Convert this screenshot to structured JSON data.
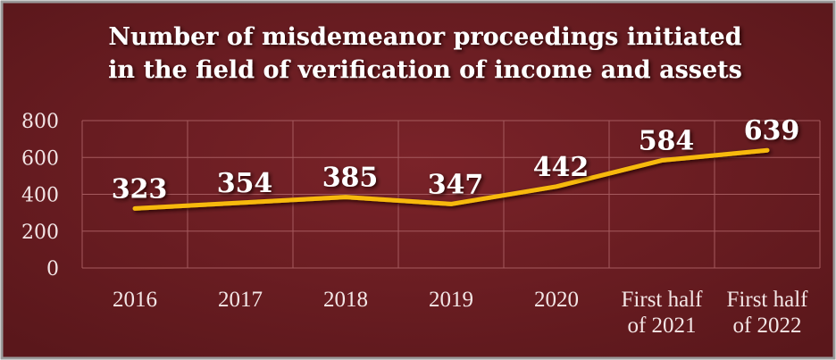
{
  "chart_data": {
    "type": "line",
    "title": [
      "Number of misdemeanor proceedings initiated",
      "in the field of verification of income and assets"
    ],
    "categories": [
      "2016",
      "2017",
      "2018",
      "2019",
      "2020",
      "First half of 2021",
      "First half of 2022"
    ],
    "values": [
      323,
      354,
      385,
      347,
      442,
      584,
      639
    ],
    "color": "#f7b90f",
    "ylim": [
      0,
      800
    ],
    "yticks": [
      0,
      200,
      400,
      600,
      800
    ],
    "grid": true
  }
}
